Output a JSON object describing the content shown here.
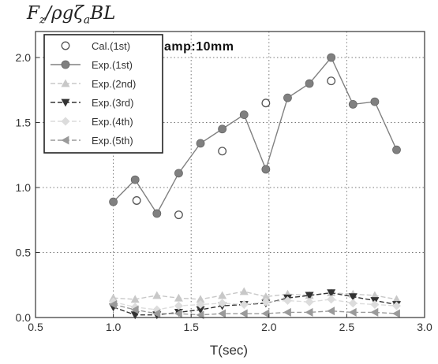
{
  "chart_data": {
    "type": "line",
    "ylabel": "F_z/ρgζ_aBL",
    "ylabel_parts": {
      "f": "F",
      "z": "z",
      "rest": "/ρgζ",
      "a": "a",
      "bl": "BL"
    },
    "xlabel": "T(sec)",
    "annotation": "amp:10mm",
    "xlim": [
      0.5,
      3.0
    ],
    "ylim": [
      0.0,
      2.2
    ],
    "x_ticks": [
      "0.5",
      "1.0",
      "1.5",
      "2.0",
      "2.5",
      "3.0"
    ],
    "y_ticks": [
      "0.0",
      "0.5",
      "1.0",
      "1.5",
      "2.0"
    ],
    "grid": "dotted",
    "legend_position": "top-left",
    "series": [
      {
        "name": "Cal.(1st)",
        "marker": "open-circle",
        "line": "none",
        "color": "#555555",
        "x": [
          1.15,
          1.42,
          1.7,
          1.98,
          2.4
        ],
        "y": [
          0.9,
          0.79,
          1.28,
          1.65,
          1.82
        ]
      },
      {
        "name": "Exp.(1st)",
        "marker": "filled-circle",
        "line": "solid",
        "color": "#808080",
        "x": [
          1.0,
          1.14,
          1.28,
          1.42,
          1.56,
          1.7,
          1.84,
          1.98,
          2.12,
          2.26,
          2.4,
          2.54,
          2.68,
          2.82
        ],
        "y": [
          0.89,
          1.06,
          0.8,
          1.11,
          1.34,
          1.45,
          1.56,
          1.14,
          1.69,
          1.8,
          2.0,
          1.64,
          1.66,
          1.29
        ]
      },
      {
        "name": "Exp.(2nd)",
        "marker": "up-triangle",
        "line": "dashed",
        "color": "#c8c8c8",
        "x": [
          1.0,
          1.14,
          1.28,
          1.42,
          1.56,
          1.7,
          1.84,
          1.98,
          2.12,
          2.26,
          2.4,
          2.54,
          2.68,
          2.82
        ],
        "y": [
          0.15,
          0.14,
          0.17,
          0.15,
          0.14,
          0.17,
          0.2,
          0.16,
          0.18,
          0.17,
          0.19,
          0.18,
          0.17,
          0.14
        ]
      },
      {
        "name": "Exp.(3rd)",
        "marker": "down-triangle",
        "line": "dashed",
        "color": "#333333",
        "x": [
          1.0,
          1.14,
          1.28,
          1.42,
          1.56,
          1.7,
          1.84,
          1.98,
          2.12,
          2.26,
          2.4,
          2.54,
          2.68,
          2.82
        ],
        "y": [
          0.08,
          0.02,
          0.02,
          0.04,
          0.06,
          0.09,
          0.1,
          0.11,
          0.15,
          0.17,
          0.19,
          0.16,
          0.13,
          0.1
        ]
      },
      {
        "name": "Exp.(4th)",
        "marker": "diamond",
        "line": "dashed",
        "color": "#dcdcdc",
        "x": [
          1.0,
          1.14,
          1.28,
          1.42,
          1.56,
          1.7,
          1.84,
          1.98,
          2.12,
          2.26,
          2.4,
          2.54,
          2.68,
          2.82
        ],
        "y": [
          0.12,
          0.08,
          0.06,
          0.09,
          0.1,
          0.11,
          0.1,
          0.12,
          0.13,
          0.12,
          0.14,
          0.11,
          0.1,
          0.09
        ]
      },
      {
        "name": "Exp.(5th)",
        "marker": "left-triangle",
        "line": "dashed",
        "color": "#9a9a9a",
        "x": [
          1.0,
          1.14,
          1.28,
          1.42,
          1.56,
          1.7,
          1.84,
          1.98,
          2.12,
          2.26,
          2.4,
          2.54,
          2.68,
          2.82
        ],
        "y": [
          0.1,
          0.06,
          0.03,
          0.03,
          0.02,
          0.03,
          0.03,
          0.03,
          0.04,
          0.04,
          0.05,
          0.04,
          0.04,
          0.03
        ]
      }
    ]
  }
}
